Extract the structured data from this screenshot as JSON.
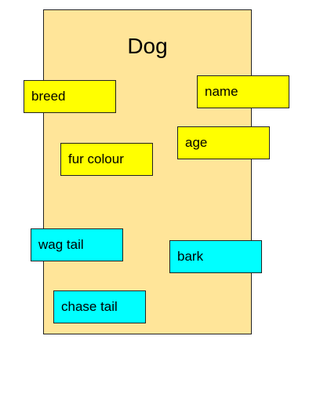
{
  "class": {
    "title": "Dog",
    "fill_color": "#ffe599"
  },
  "attributes": {
    "color": "#ffff00",
    "items": [
      "breed",
      "name",
      "age",
      "fur colour"
    ]
  },
  "methods": {
    "color": "#00ffff",
    "items": [
      "wag tail",
      "bark",
      "chase tail"
    ]
  }
}
